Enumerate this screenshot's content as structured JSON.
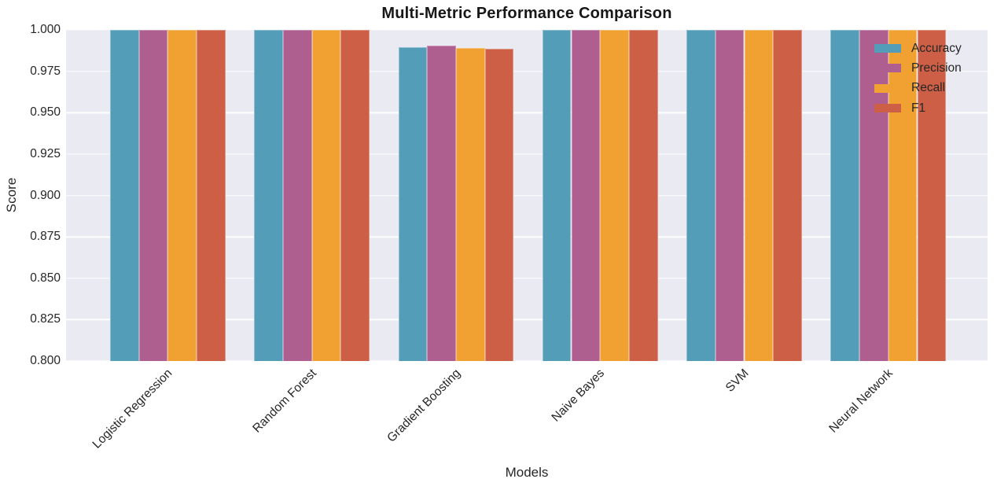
{
  "chart_data": {
    "type": "bar",
    "title": "Multi-Metric Performance Comparison",
    "xlabel": "Models",
    "ylabel": "Score",
    "categories": [
      "Logistic Regression",
      "Random Forest",
      "Gradient Boosting",
      "Naive Bayes",
      "SVM",
      "Neural Network"
    ],
    "series": [
      {
        "name": "Accuracy",
        "color": "#549db8",
        "values": [
          1.0,
          1.0,
          0.9894,
          1.0,
          1.0,
          1.0
        ]
      },
      {
        "name": "Precision",
        "color": "#ae5f8f",
        "values": [
          1.0,
          1.0,
          0.9904,
          1.0,
          1.0,
          1.0
        ]
      },
      {
        "name": "Recall",
        "color": "#f0a132",
        "values": [
          1.0,
          1.0,
          0.9889,
          1.0,
          1.0,
          1.0
        ]
      },
      {
        "name": "F1",
        "color": "#cc5f45",
        "values": [
          1.0,
          1.0,
          0.9887,
          1.0,
          1.0,
          1.0
        ]
      }
    ],
    "ylim": [
      0.8,
      1.0
    ],
    "yticks": [
      "0.800",
      "0.825",
      "0.850",
      "0.875",
      "0.900",
      "0.925",
      "0.950",
      "0.975",
      "1.000"
    ],
    "grid": true,
    "legend_position": "upper right",
    "plot_background": "#eaeaf2",
    "grid_color": "#ffffff"
  }
}
